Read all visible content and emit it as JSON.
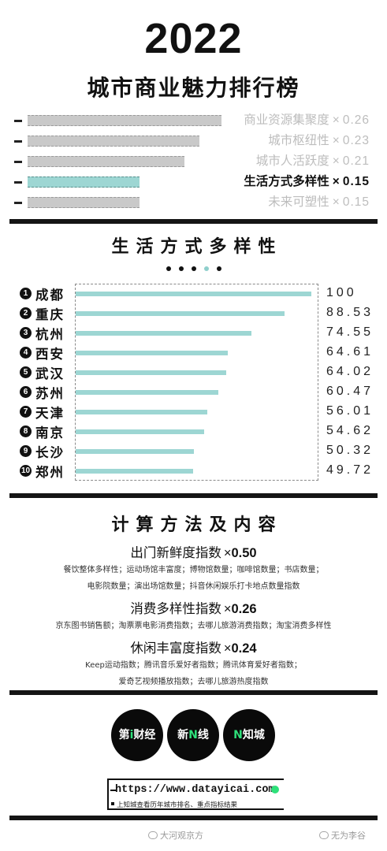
{
  "header": {
    "year": "2022",
    "title": "城市商业魅力排行榜"
  },
  "weights": [
    {
      "label": "商业资源集聚度",
      "mult": "×",
      "value": "0.26",
      "weight": 0.26,
      "active": false
    },
    {
      "label": "城市枢纽性",
      "mult": "×",
      "value": "0.23",
      "weight": 0.23,
      "active": false
    },
    {
      "label": "城市人活跃度",
      "mult": "×",
      "value": "0.21",
      "weight": 0.21,
      "active": false
    },
    {
      "label": "生活方式多样性",
      "mult": "×",
      "value": "0.15",
      "weight": 0.15,
      "active": true
    },
    {
      "label": "未来可塑性",
      "mult": "×",
      "value": "0.15",
      "weight": 0.15,
      "active": false
    }
  ],
  "section1": {
    "title": "生活方式多样性",
    "dots_total": 5,
    "dots_active_index": 3
  },
  "chart_data": {
    "type": "bar",
    "orientation": "horizontal",
    "title": "生活方式多样性",
    "categories": [
      "成都",
      "重庆",
      "杭州",
      "西安",
      "武汉",
      "苏州",
      "天津",
      "南京",
      "长沙",
      "郑州"
    ],
    "ranks": [
      "1",
      "2",
      "3",
      "4",
      "5",
      "6",
      "7",
      "8",
      "9",
      "10"
    ],
    "values": [
      100,
      88.53,
      74.55,
      64.61,
      64.02,
      60.47,
      56.01,
      54.62,
      50.32,
      49.72
    ],
    "value_labels": [
      "100",
      "88.53",
      "74.55",
      "64.61",
      "64.02",
      "60.47",
      "56.01",
      "54.62",
      "50.32",
      "49.72"
    ],
    "xlim": [
      0,
      100
    ],
    "bar_color": "#9dd6d3"
  },
  "section2": {
    "title": "计算方法及内容",
    "methods": [
      {
        "title": "出门新鲜度指数",
        "mult": "×",
        "value": "0.50",
        "lines": [
          "餐饮整体多样性；运动场馆丰富度；博物馆数量；咖啡馆数量；书店数量；",
          "电影院数量；演出场馆数量；抖音休闲娱乐打卡地点数量指数"
        ]
      },
      {
        "title": "消费多样性指数",
        "mult": "×",
        "value": "0.26",
        "lines": [
          "京东图书销售额；淘票票电影消费指数；去哪儿旅游消费指数；淘宝消费多样性"
        ]
      },
      {
        "title": "休闲丰富度指数",
        "mult": "×",
        "value": "0.24",
        "lines": [
          "Keep运动指数；腾讯音乐爱好者指数；腾讯体育爱好者指数；",
          "爱奇艺视频播放指数；去哪儿旅游热度指数"
        ]
      }
    ]
  },
  "logos": [
    {
      "pre": "第",
      "accent": "i",
      "post": "财经"
    },
    {
      "pre": "新",
      "accent": "N",
      "post": "线"
    },
    {
      "pre": "",
      "accent": "N",
      "post": "知城"
    }
  ],
  "footer": {
    "url": "https://www.datayicai.com",
    "note": "上知城查看历年城市排名、重点指标结果"
  },
  "watermarks": {
    "left": "大河观京方",
    "right": "无为李谷"
  },
  "colors": {
    "accent": "#9dd6d3",
    "green": "#2ee07a",
    "ink": "#151515",
    "inactive": "#c9c9c9"
  }
}
